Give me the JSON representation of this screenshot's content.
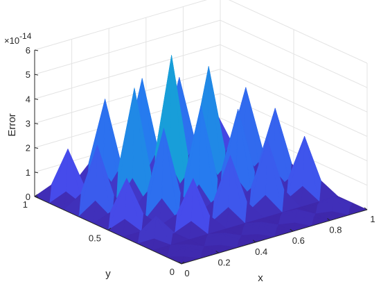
{
  "chart_data": {
    "type": "surface3d",
    "title": "",
    "xlabel": "x",
    "ylabel": "y",
    "zlabel": "Error",
    "z_exponent_label": "×10",
    "z_exponent_value": "-14",
    "xlim": [
      0,
      1
    ],
    "ylim": [
      0,
      1
    ],
    "zlim": [
      0,
      6
    ],
    "x_ticks": [
      0,
      0.2,
      0.4,
      0.6,
      0.8,
      1
    ],
    "y_ticks": [
      0,
      0.5,
      1
    ],
    "z_ticks": [
      0,
      1,
      2,
      3,
      4,
      5,
      6
    ],
    "x_tick_labels": [
      "0",
      "0.2",
      "0.4",
      "0.6",
      "0.8",
      "1"
    ],
    "y_tick_labels": [
      "0",
      "0.5",
      "1"
    ],
    "z_tick_labels": [
      "0",
      "1",
      "2",
      "3",
      "4",
      "5",
      "6"
    ],
    "grid": true,
    "colormap": "parula",
    "grid_x": [
      0,
      0.1,
      0.2,
      0.3,
      0.4,
      0.5,
      0.6,
      0.7,
      0.8,
      0.9,
      1
    ],
    "grid_y": [
      0,
      0.1,
      0.2,
      0.3,
      0.4,
      0.5,
      0.6,
      0.7,
      0.8,
      0.9,
      1
    ],
    "z": [
      [
        0,
        0,
        0,
        0,
        0,
        0,
        0,
        0,
        0,
        0,
        0
      ],
      [
        0,
        0.2,
        0,
        0.3,
        0,
        0.3,
        0,
        0.4,
        0,
        0.5,
        0
      ],
      [
        0,
        0,
        0,
        0,
        0,
        0,
        0,
        0,
        0,
        0,
        0
      ],
      [
        0,
        0.9,
        0,
        2.0,
        0,
        2.5,
        0,
        2.7,
        0,
        2.4,
        0
      ],
      [
        0,
        0,
        0,
        0,
        0,
        0,
        0,
        0,
        0,
        0,
        0
      ],
      [
        0,
        1.9,
        0,
        3.5,
        0,
        4.0,
        0,
        3.4,
        0,
        3.0,
        0
      ],
      [
        0,
        0,
        0,
        0,
        0,
        0,
        0,
        0,
        0,
        0,
        0
      ],
      [
        0,
        2.7,
        0,
        4.6,
        0,
        5.5,
        0,
        4.6,
        0,
        3.3,
        0
      ],
      [
        0,
        0,
        0,
        0,
        0,
        0,
        0,
        0,
        0,
        0,
        0
      ],
      [
        0,
        2.0,
        0,
        3.6,
        0,
        4.0,
        0,
        3.6,
        0,
        1.7,
        0
      ],
      [
        0,
        0,
        0,
        0,
        0,
        0,
        0,
        0,
        0,
        0,
        0
      ]
    ]
  }
}
